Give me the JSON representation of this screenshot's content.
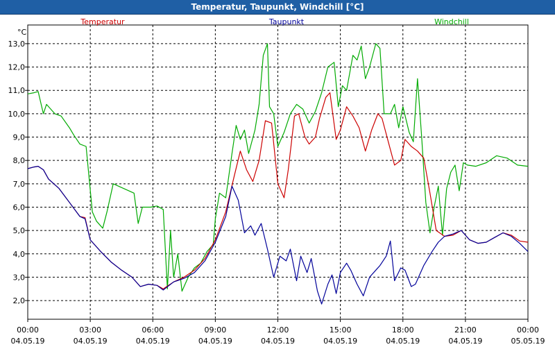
{
  "window": {
    "title": "Temperatur, Taupunkt, Windchill [°C]"
  },
  "chart_data": {
    "type": "line",
    "unit_label": "°C",
    "ylim": [
      1.2,
      13.8
    ],
    "y_ticks": [
      "2,0",
      "3,0",
      "4,0",
      "5,0",
      "6,0",
      "7,0",
      "8,0",
      "9,0",
      "10,0",
      "11,0",
      "12,0",
      "13,0"
    ],
    "x_tick_labels": [
      {
        "time": "00:00",
        "date": "04.05.19"
      },
      {
        "time": "03:00",
        "date": "04.05.19"
      },
      {
        "time": "06:00",
        "date": "04.05.19"
      },
      {
        "time": "09:00",
        "date": "04.05.19"
      },
      {
        "time": "12:00",
        "date": "04.05.19"
      },
      {
        "time": "15:00",
        "date": "04.05.19"
      },
      {
        "time": "18:00",
        "date": "04.05.19"
      },
      {
        "time": "21:00",
        "date": "04.05.19"
      },
      {
        "time": "00:00",
        "date": "05.05.19"
      }
    ],
    "x_range_hours": [
      0,
      24
    ],
    "grid": true,
    "legend_position": "top",
    "series": [
      {
        "name": "Temperatur",
        "color": "#cc0000",
        "points": [
          [
            0,
            7.65
          ],
          [
            0.3,
            7.72
          ],
          [
            0.5,
            7.75
          ],
          [
            0.75,
            7.6
          ],
          [
            1.0,
            7.2
          ],
          [
            1.5,
            6.8
          ],
          [
            2.0,
            6.2
          ],
          [
            2.5,
            5.6
          ],
          [
            2.75,
            5.55
          ],
          [
            3.0,
            4.6
          ],
          [
            3.5,
            4.1
          ],
          [
            4.0,
            3.65
          ],
          [
            4.5,
            3.3
          ],
          [
            5.0,
            3.0
          ],
          [
            5.4,
            2.6
          ],
          [
            5.8,
            2.7
          ],
          [
            6.2,
            2.65
          ],
          [
            6.5,
            2.5
          ],
          [
            7.0,
            2.8
          ],
          [
            7.5,
            3.0
          ],
          [
            8.0,
            3.3
          ],
          [
            8.5,
            3.8
          ],
          [
            9.0,
            4.6
          ],
          [
            9.5,
            5.8
          ],
          [
            9.9,
            7.3
          ],
          [
            10.2,
            8.4
          ],
          [
            10.5,
            7.6
          ],
          [
            10.8,
            7.1
          ],
          [
            11.1,
            8.0
          ],
          [
            11.4,
            9.7
          ],
          [
            11.7,
            9.6
          ],
          [
            12.0,
            7.0
          ],
          [
            12.3,
            6.4
          ],
          [
            12.5,
            7.6
          ],
          [
            12.8,
            9.9
          ],
          [
            13.0,
            10.0
          ],
          [
            13.3,
            9.0
          ],
          [
            13.5,
            8.7
          ],
          [
            13.8,
            9.0
          ],
          [
            14.0,
            9.8
          ],
          [
            14.3,
            10.7
          ],
          [
            14.5,
            10.9
          ],
          [
            14.8,
            8.9
          ],
          [
            15.0,
            9.3
          ],
          [
            15.3,
            10.3
          ],
          [
            15.6,
            9.9
          ],
          [
            15.9,
            9.4
          ],
          [
            16.2,
            8.4
          ],
          [
            16.5,
            9.3
          ],
          [
            16.8,
            10.0
          ],
          [
            17.0,
            9.8
          ],
          [
            17.3,
            8.8
          ],
          [
            17.6,
            7.8
          ],
          [
            17.9,
            8.0
          ],
          [
            18.1,
            8.9
          ],
          [
            18.4,
            8.6
          ],
          [
            18.7,
            8.4
          ],
          [
            19.0,
            8.1
          ],
          [
            19.3,
            6.6
          ],
          [
            19.6,
            5.0
          ],
          [
            20.0,
            4.75
          ],
          [
            20.4,
            4.8
          ],
          [
            20.8,
            5.0
          ],
          [
            21.2,
            4.6
          ],
          [
            21.6,
            4.45
          ],
          [
            22.0,
            4.5
          ],
          [
            22.4,
            4.7
          ],
          [
            22.8,
            4.9
          ],
          [
            23.2,
            4.8
          ],
          [
            23.6,
            4.55
          ],
          [
            24.0,
            4.5
          ]
        ]
      },
      {
        "name": "Taupunkt",
        "color": "#000099",
        "points": [
          [
            0,
            7.65
          ],
          [
            0.3,
            7.72
          ],
          [
            0.5,
            7.75
          ],
          [
            0.75,
            7.6
          ],
          [
            1.0,
            7.2
          ],
          [
            1.5,
            6.8
          ],
          [
            2.0,
            6.2
          ],
          [
            2.5,
            5.6
          ],
          [
            2.75,
            5.5
          ],
          [
            3.0,
            4.6
          ],
          [
            3.5,
            4.1
          ],
          [
            4.0,
            3.65
          ],
          [
            4.5,
            3.3
          ],
          [
            5.0,
            3.0
          ],
          [
            5.4,
            2.6
          ],
          [
            5.8,
            2.7
          ],
          [
            6.2,
            2.65
          ],
          [
            6.5,
            2.45
          ],
          [
            7.0,
            2.8
          ],
          [
            7.5,
            2.95
          ],
          [
            8.0,
            3.2
          ],
          [
            8.5,
            3.7
          ],
          [
            9.0,
            4.5
          ],
          [
            9.5,
            5.6
          ],
          [
            9.8,
            6.9
          ],
          [
            10.1,
            6.3
          ],
          [
            10.4,
            4.9
          ],
          [
            10.7,
            5.2
          ],
          [
            10.9,
            4.8
          ],
          [
            11.2,
            5.3
          ],
          [
            11.5,
            4.2
          ],
          [
            11.8,
            3.0
          ],
          [
            12.1,
            3.9
          ],
          [
            12.4,
            3.7
          ],
          [
            12.6,
            4.2
          ],
          [
            12.9,
            2.85
          ],
          [
            13.1,
            3.9
          ],
          [
            13.4,
            3.2
          ],
          [
            13.6,
            3.8
          ],
          [
            13.9,
            2.4
          ],
          [
            14.1,
            1.85
          ],
          [
            14.4,
            2.7
          ],
          [
            14.6,
            3.1
          ],
          [
            14.8,
            2.3
          ],
          [
            15.0,
            3.2
          ],
          [
            15.3,
            3.6
          ],
          [
            15.5,
            3.3
          ],
          [
            15.8,
            2.7
          ],
          [
            16.1,
            2.2
          ],
          [
            16.4,
            3.0
          ],
          [
            16.7,
            3.3
          ],
          [
            16.9,
            3.5
          ],
          [
            17.2,
            3.9
          ],
          [
            17.4,
            4.55
          ],
          [
            17.6,
            2.85
          ],
          [
            17.9,
            3.4
          ],
          [
            18.1,
            3.3
          ],
          [
            18.4,
            2.6
          ],
          [
            18.6,
            2.7
          ],
          [
            19.0,
            3.5
          ],
          [
            19.4,
            4.1
          ],
          [
            19.7,
            4.5
          ],
          [
            20.0,
            4.75
          ],
          [
            20.4,
            4.85
          ],
          [
            20.8,
            5.0
          ],
          [
            21.2,
            4.6
          ],
          [
            21.6,
            4.45
          ],
          [
            22.0,
            4.5
          ],
          [
            22.4,
            4.7
          ],
          [
            22.8,
            4.9
          ],
          [
            23.2,
            4.75
          ],
          [
            23.6,
            4.45
          ],
          [
            24.0,
            4.1
          ]
        ]
      },
      {
        "name": "Windchill",
        "color": "#00aa00",
        "points": [
          [
            0,
            10.85
          ],
          [
            0.3,
            10.9
          ],
          [
            0.5,
            10.95
          ],
          [
            0.75,
            10.0
          ],
          [
            0.9,
            10.4
          ],
          [
            1.3,
            10.0
          ],
          [
            1.6,
            9.9
          ],
          [
            2.0,
            9.4
          ],
          [
            2.2,
            9.1
          ],
          [
            2.5,
            8.7
          ],
          [
            2.8,
            8.6
          ],
          [
            2.95,
            7.2
          ],
          [
            3.1,
            5.8
          ],
          [
            3.3,
            5.4
          ],
          [
            3.6,
            5.1
          ],
          [
            3.8,
            5.8
          ],
          [
            4.1,
            7.0
          ],
          [
            4.6,
            6.8
          ],
          [
            5.1,
            6.6
          ],
          [
            5.3,
            5.3
          ],
          [
            5.5,
            6.0
          ],
          [
            5.9,
            6.0
          ],
          [
            6.2,
            6.05
          ],
          [
            6.5,
            5.9
          ],
          [
            6.7,
            2.5
          ],
          [
            6.85,
            5.0
          ],
          [
            7.0,
            3.0
          ],
          [
            7.2,
            4.0
          ],
          [
            7.4,
            2.4
          ],
          [
            7.7,
            3.0
          ],
          [
            8.0,
            3.4
          ],
          [
            8.3,
            3.6
          ],
          [
            8.6,
            4.1
          ],
          [
            8.9,
            4.4
          ],
          [
            9.0,
            5.5
          ],
          [
            9.2,
            6.6
          ],
          [
            9.5,
            6.4
          ],
          [
            9.8,
            8.3
          ],
          [
            10.0,
            9.5
          ],
          [
            10.2,
            8.9
          ],
          [
            10.4,
            9.3
          ],
          [
            10.6,
            8.3
          ],
          [
            10.9,
            9.3
          ],
          [
            11.1,
            10.4
          ],
          [
            11.3,
            12.5
          ],
          [
            11.5,
            13.0
          ],
          [
            11.6,
            10.3
          ],
          [
            11.8,
            10.0
          ],
          [
            12.0,
            8.6
          ],
          [
            12.3,
            9.2
          ],
          [
            12.6,
            10.0
          ],
          [
            12.9,
            10.4
          ],
          [
            13.2,
            10.2
          ],
          [
            13.5,
            9.6
          ],
          [
            13.8,
            10.1
          ],
          [
            14.1,
            10.9
          ],
          [
            14.4,
            12.0
          ],
          [
            14.7,
            12.2
          ],
          [
            14.9,
            10.3
          ],
          [
            15.1,
            11.2
          ],
          [
            15.3,
            11.0
          ],
          [
            15.6,
            12.5
          ],
          [
            15.8,
            12.3
          ],
          [
            16.0,
            12.9
          ],
          [
            16.2,
            11.5
          ],
          [
            16.4,
            12.0
          ],
          [
            16.7,
            13.0
          ],
          [
            16.9,
            12.8
          ],
          [
            17.1,
            10.0
          ],
          [
            17.4,
            10.0
          ],
          [
            17.6,
            10.4
          ],
          [
            17.8,
            9.4
          ],
          [
            18.0,
            10.3
          ],
          [
            18.3,
            9.2
          ],
          [
            18.5,
            8.8
          ],
          [
            18.7,
            11.5
          ],
          [
            18.9,
            9.0
          ],
          [
            19.1,
            6.2
          ],
          [
            19.3,
            4.9
          ],
          [
            19.5,
            6.0
          ],
          [
            19.7,
            6.9
          ],
          [
            19.9,
            4.8
          ],
          [
            20.1,
            6.8
          ],
          [
            20.3,
            7.5
          ],
          [
            20.5,
            7.8
          ],
          [
            20.7,
            6.7
          ],
          [
            20.9,
            7.9
          ],
          [
            21.1,
            7.8
          ],
          [
            21.5,
            7.75
          ],
          [
            22.0,
            7.9
          ],
          [
            22.5,
            8.2
          ],
          [
            23.0,
            8.1
          ],
          [
            23.5,
            7.8
          ],
          [
            24.0,
            7.75
          ]
        ]
      }
    ]
  }
}
